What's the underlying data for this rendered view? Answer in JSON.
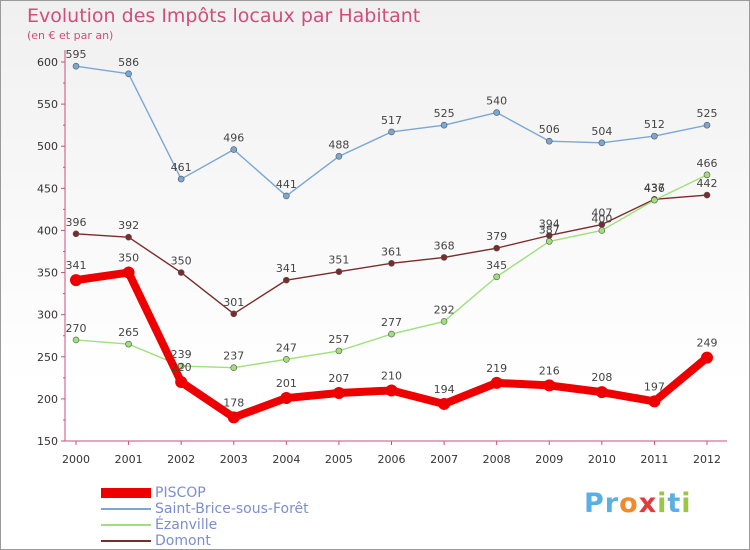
{
  "title": "Evolution des Impôts locaux par Habitant",
  "subtitle": "(en € et par an)",
  "logo": {
    "text": "Proxiti"
  },
  "colors": {
    "title": "#d04e79",
    "axis": "#d04e79",
    "legend_text": "#7b8ed0"
  },
  "chart_data": {
    "type": "line",
    "x": [
      "2000",
      "2001",
      "2002",
      "2003",
      "2004",
      "2005",
      "2006",
      "2007",
      "2008",
      "2009",
      "2010",
      "2011",
      "2012"
    ],
    "ylim": [
      150,
      600
    ],
    "yticks": [
      150,
      200,
      250,
      300,
      350,
      400,
      450,
      500,
      550,
      600
    ],
    "grid": false,
    "legend_position": "bottom-left",
    "series": [
      {
        "name": "PISCOP",
        "color": "#ee0000",
        "values": [
          341,
          350,
          220,
          178,
          201,
          207,
          210,
          194,
          219,
          216,
          208,
          197,
          249
        ]
      },
      {
        "name": "Saint-Brice-sous-Forêt",
        "color": "#7aa7d4",
        "values": [
          595,
          586,
          461,
          496,
          441,
          488,
          517,
          525,
          540,
          506,
          504,
          512,
          525
        ]
      },
      {
        "name": "Ézanville",
        "color": "#9fe07a",
        "values": [
          270,
          265,
          239,
          237,
          247,
          257,
          277,
          292,
          345,
          387,
          400,
          436,
          466
        ]
      },
      {
        "name": "Domont",
        "color": "#7a2b2b",
        "values": [
          396,
          392,
          350,
          301,
          341,
          351,
          361,
          368,
          379,
          394,
          407,
          437,
          442
        ]
      }
    ]
  }
}
